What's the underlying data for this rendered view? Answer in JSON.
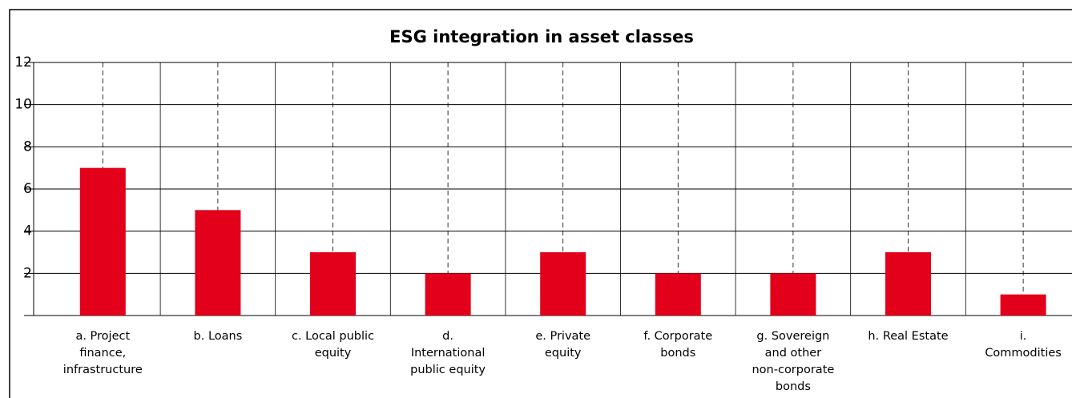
{
  "chart_data": {
    "type": "bar",
    "title": "ESG integration in asset classes",
    "categories": [
      "a. Project\nfinance,\ninfrastructure",
      "b. Loans",
      "c. Local public\nequity",
      "d.\nInternational\npublic equity",
      "e. Private\nequity",
      "f. Corporate\nbonds",
      "g. Sovereign\nand other\nnon-corporate\nbonds",
      "h. Real Estate",
      "i.\nCommodities"
    ],
    "values": [
      7,
      5,
      3,
      2,
      3,
      2,
      2,
      3,
      1
    ],
    "color": "#e2001a",
    "ylim": [
      0,
      12
    ],
    "yticks": [
      2,
      4,
      6,
      8,
      10,
      12
    ],
    "grid": true
  }
}
